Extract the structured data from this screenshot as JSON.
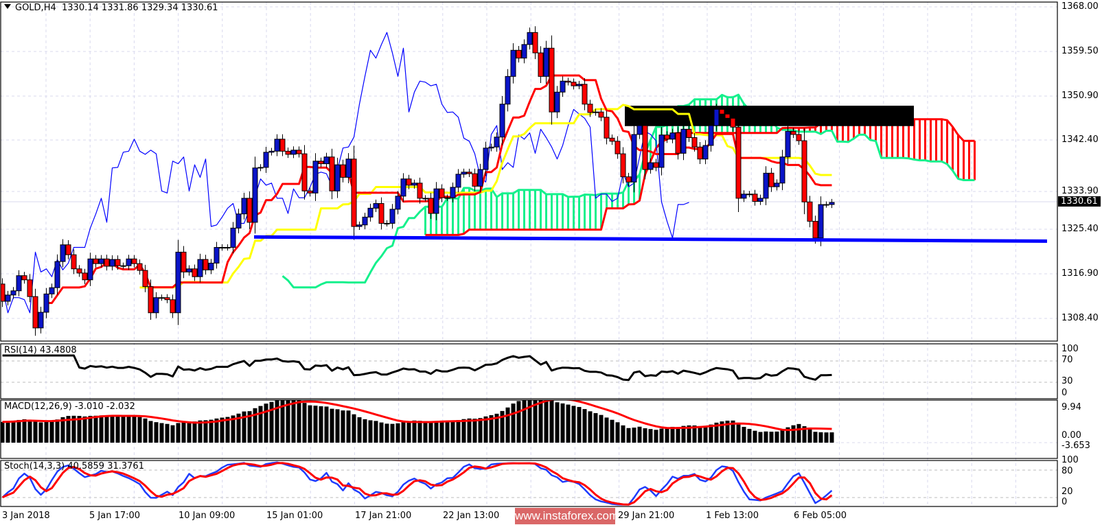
{
  "header": {
    "symbol": "GOLD,H4",
    "open": "1330.14",
    "high": "1331.86",
    "low": "1329.34",
    "close": "1330.61"
  },
  "price_axis": [
    "1368.00",
    "1359.50",
    "1350.90",
    "1342.40",
    "1333.90",
    "1325.40",
    "1316.90",
    "1308.40"
  ],
  "current_price": "1330.61",
  "rsi": {
    "label": "RSI(14) 43.4808",
    "levels": [
      "100",
      "70",
      "30",
      "0"
    ]
  },
  "macd": {
    "label": "MACD(12,26,9) -3.010 -2.032",
    "levels": [
      "9.94",
      "0.00",
      "-3.653"
    ]
  },
  "stoch": {
    "label": "Stoch(14,3,3) 40.5859 31.3761",
    "levels": [
      "100",
      "80",
      "20",
      "0"
    ]
  },
  "time_axis": [
    "3 Jan 2018",
    "5 Jan 17:00",
    "10 Jan 09:00",
    "15 Jan 01:00",
    "17 Jan 21:00",
    "22 Jan 13:00",
    "29 Jan 21:00",
    "1 Feb 13:00",
    "6 Feb 05:00"
  ],
  "watermark": "www.instaforex.com",
  "colors": {
    "bull": "#0a14c8",
    "bear": "#ff0000",
    "tenkan": "#ff0000",
    "kijun": "#ffff00",
    "chikou": "#0000ff",
    "cloud_bull": "#14f08c",
    "cloud_bear": "#ff0000",
    "support_line": "#0000ff",
    "resistance_zone": "#000000",
    "macd_signal": "#ff0000",
    "stoch_main": "#1e3cff",
    "stoch_signal": "#ff0000"
  },
  "chart_data": {
    "type": "candlestick",
    "timeframe": "H4",
    "first_open": 1315.0,
    "ylim": [
      1304.6,
      1368.0
    ],
    "indicators": [
      "Ichimoku",
      "RSI(14)",
      "MACD(12,26,9)",
      "Stoch(14,3,3)"
    ],
    "support_line": [
      1324.0,
      1323.2
    ],
    "resistance_zone": [
      1345.2,
      1349.1
    ],
    "closes": [
      1311.7,
      1312.9,
      1313.7,
      1316.6,
      1315.8,
      1312.6,
      1306.6,
      1309.6,
      1313.1,
      1314.3,
      1319.3,
      1322.5,
      1320.6,
      1317.9,
      1317.1,
      1315.8,
      1319.8,
      1318.9,
      1319.8,
      1318.4,
      1319.7,
      1318.5,
      1318.5,
      1319.8,
      1318.9,
      1317.6,
      1314.5,
      1309.5,
      1312.4,
      1312.4,
      1312.0,
      1309.5,
      1321.1,
      1317.3,
      1317.9,
      1316.4,
      1319.7,
      1317.7,
      1319.0,
      1322.0,
      1322.0,
      1322.0,
      1325.7,
      1328.4,
      1331.4,
      1326.8,
      1337.2,
      1337.3,
      1340.2,
      1340.4,
      1342.7,
      1340.4,
      1339.8,
      1340.6,
      1339.9,
      1332.8,
      1332.4,
      1338.5,
      1338.0,
      1339.3,
      1332.8,
      1337.8,
      1335.4,
      1338.9,
      1326.0,
      1326.3,
      1327.8,
      1329.5,
      1330.4,
      1326.6,
      1326.6,
      1329.3,
      1331.8,
      1335.1,
      1333.9,
      1334.3,
      1331.4,
      1331.4,
      1328.5,
      1333.2,
      1331.5,
      1331.5,
      1333.5,
      1336.0,
      1336.4,
      1336.1,
      1333.7,
      1336.9,
      1341.0,
      1341.2,
      1343.1,
      1349.4,
      1354.7,
      1359.7,
      1358.2,
      1360.8,
      1363.1,
      1359.2,
      1354.7,
      1360.1,
      1347.9,
      1351.7,
      1353.8,
      1353.6,
      1352.9,
      1353.2,
      1349.4,
      1347.8,
      1347.9,
      1346.9,
      1342.9,
      1342.3,
      1339.9,
      1335.5,
      1334.5,
      1343.6,
      1345.3,
      1336.9,
      1338.2,
      1337.3,
      1343.5,
      1342.7,
      1343.9,
      1340.0,
      1344.6,
      1343.0,
      1341.2,
      1338.9,
      1341.5,
      1345.3,
      1348.4,
      1347.5,
      1346.7,
      1345.0,
      1331.4,
      1332.2,
      1332.2,
      1330.8,
      1331.4,
      1336.2,
      1333.6,
      1334.3,
      1339.3,
      1344.2,
      1343.6,
      1342.4,
      1330.7,
      1327.0,
      1323.8,
      1330.2,
      1330.2,
      1330.61
    ]
  }
}
